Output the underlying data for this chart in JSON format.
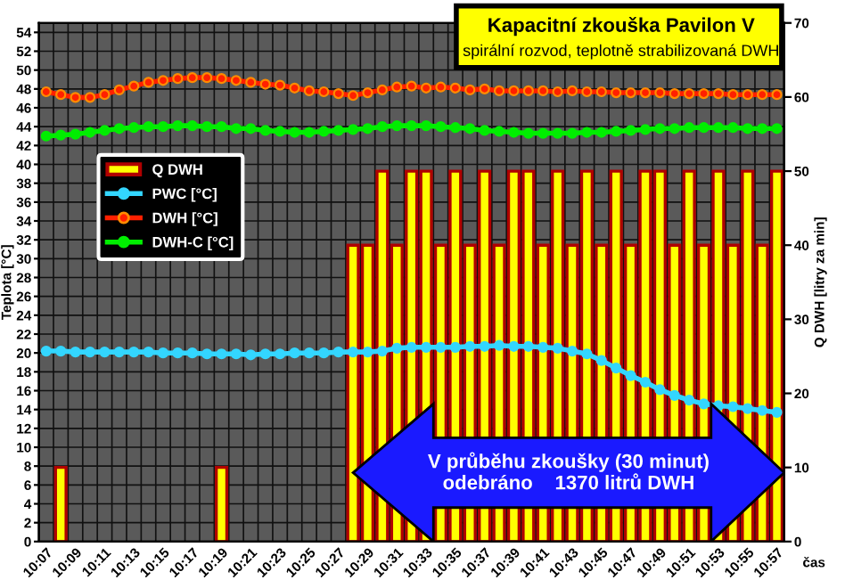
{
  "chart_data": {
    "type": "line",
    "title": "Kapacitní zkouška Pavilon V",
    "subtitle": "spirální rozvod, teplotně strabilizovaná DWH",
    "xlabel": "čas",
    "ylabel": "Teplota [°C]",
    "y2label": "Q DWH [litry za min]",
    "categories": [
      "10:07",
      null,
      "10:09",
      null,
      "10:11",
      null,
      "10:13",
      null,
      "10:15",
      null,
      "10:17",
      null,
      "10:19",
      null,
      "10:21",
      null,
      "10:23",
      null,
      "10:25",
      null,
      "10:27",
      null,
      "10:29",
      null,
      "10:31",
      null,
      "10:33",
      null,
      "10:35",
      null,
      "10:37",
      null,
      "10:39",
      null,
      "10:41",
      null,
      "10:43",
      null,
      "10:45",
      null,
      "10:47",
      null,
      "10:49",
      null,
      "10:51",
      null,
      "10:53",
      null,
      "10:55",
      null,
      "10:57"
    ],
    "series": [
      {
        "name": "Q DWH",
        "type": "bar",
        "axis": "y2",
        "color": "#ffff00",
        "values": [
          null,
          10,
          null,
          null,
          null,
          null,
          null,
          null,
          null,
          null,
          null,
          null,
          10,
          null,
          null,
          null,
          null,
          null,
          null,
          null,
          null,
          40,
          40,
          50,
          40,
          50,
          50,
          40,
          50,
          40,
          50,
          40,
          50,
          50,
          40,
          50,
          40,
          50,
          40,
          50,
          40,
          50,
          50,
          40,
          50,
          40,
          50,
          40,
          50,
          40,
          50
        ]
      },
      {
        "name": "PWC [°C]",
        "color": "#33d6ff",
        "values": [
          20.2,
          20.2,
          20.1,
          20.1,
          20.1,
          20.1,
          20.1,
          20.1,
          20.0,
          20.0,
          20.0,
          19.9,
          19.9,
          19.9,
          19.8,
          19.9,
          19.9,
          20.0,
          20.0,
          20.0,
          20.1,
          20.1,
          20.1,
          20.2,
          20.5,
          20.6,
          20.6,
          20.6,
          20.6,
          20.7,
          20.7,
          20.8,
          20.7,
          20.7,
          20.6,
          20.5,
          20.2,
          19.9,
          19.2,
          18.4,
          17.6,
          16.9,
          16.1,
          15.5,
          15.0,
          14.6,
          14.4,
          14.3,
          14.1,
          13.9,
          13.7
        ]
      },
      {
        "name": "DWH [°C]",
        "color": "#ff2000",
        "values": [
          47.7,
          47.4,
          47.1,
          47.1,
          47.4,
          47.9,
          48.3,
          48.7,
          48.9,
          49.1,
          49.2,
          49.2,
          49.1,
          48.9,
          48.7,
          48.5,
          48.4,
          48.1,
          47.8,
          47.7,
          47.5,
          47.3,
          47.6,
          47.9,
          48.2,
          48.3,
          48.1,
          48.2,
          48.1,
          47.9,
          48.0,
          47.8,
          47.8,
          47.8,
          47.8,
          47.7,
          47.8,
          47.7,
          47.7,
          47.6,
          47.6,
          47.6,
          47.6,
          47.5,
          47.5,
          47.5,
          47.5,
          47.4,
          47.4,
          47.4,
          47.4
        ]
      },
      {
        "name": "DWH-C [°C]",
        "color": "#00ee00",
        "values": [
          43.0,
          43.1,
          43.2,
          43.4,
          43.6,
          43.8,
          43.9,
          44.0,
          44.0,
          44.1,
          44.1,
          44.0,
          44.0,
          43.8,
          43.8,
          43.6,
          43.5,
          43.4,
          43.4,
          43.5,
          43.6,
          43.7,
          43.8,
          44.0,
          44.1,
          44.1,
          44.1,
          44.0,
          43.9,
          43.8,
          43.6,
          43.5,
          43.4,
          43.3,
          43.3,
          43.3,
          43.3,
          43.4,
          43.4,
          43.5,
          43.6,
          43.7,
          43.8,
          43.8,
          43.9,
          43.9,
          43.9,
          43.9,
          43.8,
          43.8,
          43.8
        ]
      }
    ],
    "ylim": [
      0,
      55
    ],
    "yticks": [
      0,
      2,
      4,
      6,
      8,
      10,
      12,
      14,
      16,
      18,
      20,
      22,
      24,
      26,
      28,
      30,
      32,
      34,
      36,
      38,
      40,
      42,
      44,
      46,
      48,
      50,
      52,
      54
    ],
    "y2lim": [
      0,
      70
    ],
    "y2ticks": [
      0,
      10,
      20,
      30,
      40,
      50,
      60,
      70
    ],
    "annotations": [
      "V průběhu zkoušky (30 minut)\nodebráno    1370 litrů DWH"
    ],
    "grid": true,
    "legend": "left",
    "marker": "circle",
    "line_style": "solid"
  }
}
